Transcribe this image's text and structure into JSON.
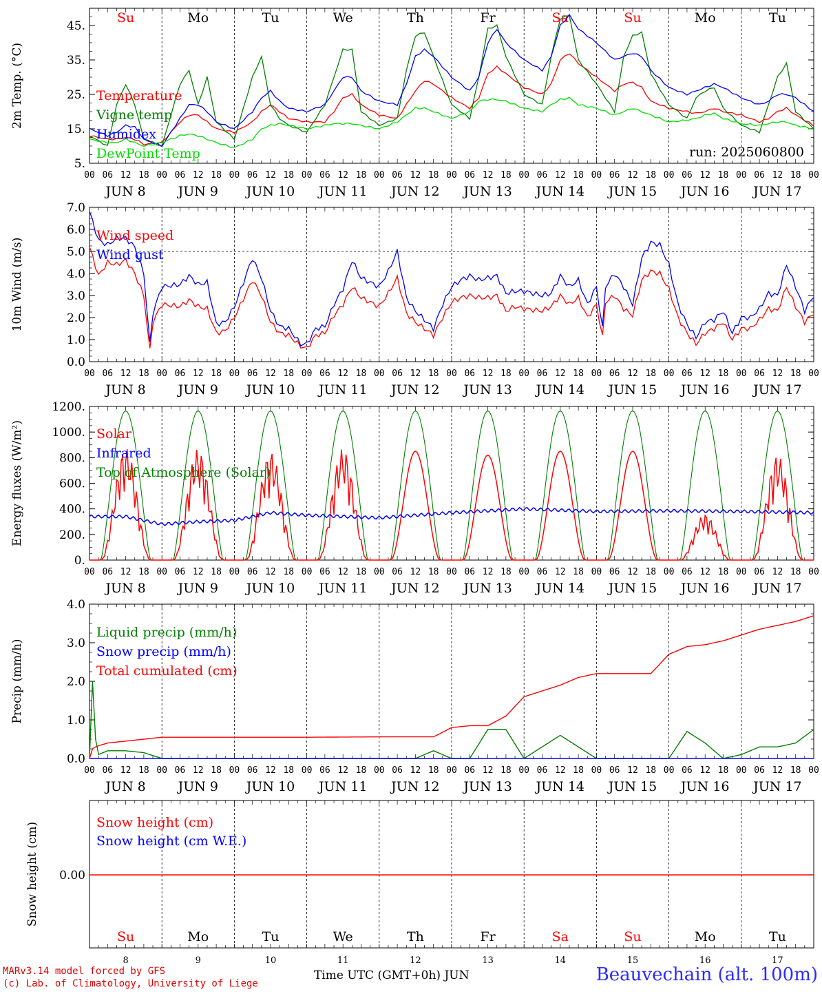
{
  "chart_data": [
    {
      "type": "line",
      "ylabel": "2m Temp. (°C)",
      "ylim": [
        5,
        50
      ],
      "yticks": [
        "5.",
        "15.",
        "25.",
        "35.",
        "45."
      ],
      "annotation": "run: 2025060800",
      "x_hours": [
        0,
        6,
        9,
        12,
        15,
        18,
        24,
        30,
        33,
        36,
        39,
        42,
        48,
        54,
        57,
        60,
        63,
        66,
        72,
        78,
        81,
        84,
        87,
        90,
        96,
        102,
        105,
        108,
        111,
        114,
        120,
        126,
        129,
        132,
        135,
        138,
        144,
        150,
        153,
        156,
        159,
        162,
        168,
        174,
        177,
        180,
        183,
        186,
        192,
        198,
        201,
        204,
        207,
        210,
        216,
        222,
        225,
        228,
        231,
        234,
        240
      ],
      "series": [
        {
          "name": "Temperature",
          "color": "#ff0000",
          "values": [
            13,
            12,
            12,
            12.5,
            12,
            10.5,
            11,
            17,
            19,
            19,
            17,
            15,
            14,
            17,
            20,
            22,
            20,
            18,
            17,
            17,
            20,
            24,
            25,
            22,
            19,
            18,
            22,
            26,
            29,
            28,
            24,
            21,
            24,
            31,
            33,
            31,
            27,
            25,
            28,
            35,
            37,
            34,
            30,
            26,
            28,
            28.5,
            27,
            23,
            21,
            20,
            19.5,
            20,
            21,
            20,
            19,
            17,
            18,
            20,
            21,
            19,
            16
          ]
        },
        {
          "name": "Vigne temp",
          "color": "#008000",
          "values": [
            13,
            10,
            22,
            28,
            22,
            12,
            10,
            28,
            32,
            22,
            30,
            17,
            12,
            30,
            36,
            22,
            18,
            16,
            14,
            22,
            30,
            38,
            38,
            20,
            16,
            18,
            32,
            42,
            43,
            36,
            22,
            18,
            30,
            44,
            45,
            36,
            25,
            22,
            36,
            47,
            48,
            35,
            28,
            20,
            36,
            42,
            43,
            31,
            22,
            18,
            24,
            26,
            27,
            21,
            16,
            14,
            22,
            30,
            34,
            20,
            15
          ]
        },
        {
          "name": "Humidex",
          "color": "#0000ff",
          "values": [
            15,
            13,
            14,
            16,
            15.5,
            12,
            10,
            18,
            22,
            22,
            20,
            17,
            15,
            20,
            24,
            26,
            23,
            21,
            20,
            22,
            26,
            30,
            30,
            26,
            23,
            22,
            28,
            36,
            38,
            36,
            30,
            26,
            30,
            40,
            44,
            40,
            35,
            32,
            36,
            45,
            48,
            44,
            40,
            35,
            36,
            37,
            36,
            32,
            27,
            25,
            26,
            27,
            28,
            27,
            24,
            22,
            23,
            25,
            25,
            24,
            20
          ]
        },
        {
          "name": "DewPoint Temp",
          "color": "#00dd00",
          "values": [
            12,
            11,
            11,
            12,
            11,
            10,
            11,
            13,
            13.5,
            13,
            12,
            11,
            9.5,
            12,
            15,
            16,
            16.5,
            16,
            15,
            16,
            16.5,
            16.5,
            16.5,
            16,
            15,
            17,
            19,
            21,
            21,
            20,
            18,
            20,
            23,
            23.5,
            23.5,
            23,
            21,
            20,
            22,
            23.5,
            24,
            22,
            21,
            19,
            20,
            21,
            20,
            19,
            17,
            17.5,
            18,
            19,
            19.5,
            18,
            16.5,
            16,
            16.5,
            17,
            17,
            16,
            15
          ]
        }
      ]
    },
    {
      "type": "line",
      "ylabel": "10m Wind (m/s)",
      "ylim": [
        0,
        7
      ],
      "yticks": [
        "0.0",
        "1.0",
        "2.0",
        "3.0",
        "4.0",
        "5.0",
        "6.0",
        "7.0"
      ],
      "dashed_line_at": 5,
      "x_hours": [
        0,
        3,
        6,
        9,
        12,
        15,
        18,
        20,
        21,
        24,
        30,
        33,
        36,
        39,
        42,
        45,
        48,
        54,
        57,
        60,
        63,
        66,
        70,
        72,
        75,
        78,
        81,
        84,
        87,
        90,
        96,
        99,
        102,
        105,
        108,
        111,
        114,
        117,
        120,
        123,
        126,
        129,
        132,
        135,
        138,
        141,
        144,
        150,
        153,
        156,
        159,
        162,
        165,
        168,
        170,
        171,
        174,
        177,
        180,
        183,
        186,
        189,
        192,
        195,
        198,
        201,
        204,
        207,
        210,
        213,
        216,
        219,
        222,
        225,
        228,
        231,
        234,
        237,
        240
      ],
      "series": [
        {
          "name": "Wind speed",
          "color": "#ff0000",
          "values": [
            5.2,
            3.9,
            4.5,
            4.4,
            4.6,
            4,
            3,
            0.5,
            1.8,
            2.6,
            2.5,
            2.8,
            2.5,
            2.4,
            1.3,
            1.4,
            2,
            3.7,
            3,
            1.8,
            1.3,
            1.2,
            0.7,
            0.6,
            1.2,
            1.3,
            2.1,
            2.6,
            3.4,
            2.9,
            2.5,
            3.1,
            3.8,
            2.2,
            1.8,
            1.5,
            1.2,
            2,
            2.7,
            2.9,
            3,
            2.9,
            2.9,
            3,
            2.3,
            2.5,
            2.4,
            2.3,
            2.5,
            3,
            2.6,
            2.9,
            2,
            2.6,
            1.1,
            2.7,
            3,
            2.4,
            2.1,
            3.7,
            4.1,
            4,
            3.3,
            2,
            1.3,
            0.8,
            1.3,
            1.5,
            1.8,
            1,
            1.5,
            1.5,
            1.9,
            2.4,
            2.3,
            3.4,
            2.5,
            1.8,
            2.2
          ]
        },
        {
          "name": "Wind gust",
          "color": "#0000ff",
          "values": [
            6.8,
            5.5,
            5.3,
            5.6,
            5.6,
            5.2,
            4,
            0.8,
            2.2,
            3.4,
            3.5,
            3.9,
            3.5,
            3.6,
            1.7,
            1.8,
            2.5,
            4.7,
            3.8,
            2.3,
            1.6,
            1.5,
            0.8,
            0.8,
            1.5,
            1.6,
            2.6,
            3.3,
            4.6,
            3.8,
            3.4,
            4.1,
            5,
            2.9,
            2.3,
            1.9,
            1.5,
            2.6,
            3.4,
            3.7,
            3.9,
            3.7,
            3.8,
            3.9,
            3.1,
            3.2,
            3.2,
            3,
            3.1,
            3.9,
            3.4,
            3.7,
            2.6,
            3.4,
            1.5,
            3.4,
            4,
            3.4,
            2.6,
            4.7,
            5.4,
            5.3,
            4.4,
            2.6,
            1.7,
            1.1,
            1.8,
            1.9,
            2.3,
            1.3,
            2,
            2,
            2.4,
            3.1,
            3,
            4.4,
            3.4,
            2.3,
            3
          ]
        }
      ]
    },
    {
      "type": "line",
      "ylabel": "Energy fluxes (W/m²)",
      "ylim": [
        0,
        1200
      ],
      "yticks": [
        "0.",
        "200.",
        "400.",
        "600.",
        "800.",
        "1000.",
        "1200."
      ],
      "solar_peaks": [
        880,
        870,
        850,
        870,
        850,
        820,
        850,
        850,
        360,
        820
      ],
      "toa_peak": 1165,
      "infrared_hourly_base": [
        340,
        330,
        310,
        370,
        345,
        330,
        380,
        395,
        390,
        380,
        390,
        370,
        360
      ],
      "series": [
        {
          "name": "Solar",
          "color": "#ff0000"
        },
        {
          "name": "Infrared",
          "color": "#0000ff"
        },
        {
          "name": "Top of Atmosphere (Solar)",
          "color": "#008000"
        }
      ]
    },
    {
      "type": "line",
      "ylabel": "Precip (mm/h)",
      "ylim": [
        0,
        4
      ],
      "yticks": [
        "0.0",
        "1.0",
        "2.0",
        "3.0",
        "4.0"
      ],
      "x_hours": [
        0,
        1,
        2,
        3,
        6,
        12,
        18,
        24,
        48,
        72,
        96,
        108,
        114,
        120,
        126,
        132,
        138,
        144,
        150,
        156,
        162,
        168,
        174,
        180,
        186,
        192,
        198,
        204,
        210,
        216,
        222,
        228,
        234,
        240
      ],
      "series": [
        {
          "name": "Liquid precip (mm/h)",
          "color": "#008000",
          "values": [
            0,
            2,
            0.5,
            0.1,
            0.2,
            0.2,
            0.15,
            0,
            0,
            0,
            0,
            0,
            0.2,
            0,
            0,
            0.75,
            0.75,
            0,
            0.3,
            0.6,
            0.3,
            0,
            0,
            0,
            0,
            0,
            0.7,
            0.4,
            0,
            0.1,
            0.3,
            0.3,
            0.4,
            0.75
          ]
        },
        {
          "name": "Snow precip (mm/h)",
          "color": "#0000ff",
          "values": [
            0,
            0,
            0,
            0,
            0,
            0,
            0,
            0,
            0,
            0,
            0,
            0,
            0,
            0,
            0,
            0,
            0,
            0,
            0,
            0,
            0,
            0,
            0,
            0,
            0,
            0,
            0,
            0,
            0,
            0,
            0,
            0,
            0,
            0
          ]
        },
        {
          "name": "Total cumulated (cm)",
          "color": "#ff0000",
          "values": [
            0,
            0.25,
            0.3,
            0.33,
            0.4,
            0.45,
            0.5,
            0.55,
            0.55,
            0.55,
            0.56,
            0.56,
            0.56,
            0.8,
            0.85,
            0.85,
            1.1,
            1.6,
            1.75,
            1.9,
            2.1,
            2.2,
            2.2,
            2.2,
            2.2,
            2.7,
            2.9,
            2.95,
            3.05,
            3.2,
            3.35,
            3.45,
            3.55,
            3.7
          ]
        }
      ]
    },
    {
      "type": "line",
      "ylabel": "Snow height (cm)",
      "yticks": [
        "0.00"
      ],
      "series": [
        {
          "name": "Snow height (cm)",
          "color": "#ff0000",
          "values": [
            0,
            0
          ]
        },
        {
          "name": "Snow height (cm W.E.)",
          "color": "#0000ff",
          "values": [
            0,
            0
          ]
        }
      ]
    }
  ],
  "hour_ticks": [
    "00",
    "06",
    "12",
    "18"
  ],
  "last_hour_tick": "00",
  "date_labels": [
    "JUN  8",
    "JUN  9",
    "JUN 10",
    "JUN 11",
    "JUN 12",
    "JUN 13",
    "JUN 14",
    "JUN 15",
    "JUN 16",
    "JUN 17"
  ],
  "weekdays": [
    {
      "label": "Su",
      "weekend": true
    },
    {
      "label": "Mo",
      "weekend": false
    },
    {
      "label": "Tu",
      "weekend": false
    },
    {
      "label": "We",
      "weekend": false
    },
    {
      "label": "Th",
      "weekend": false
    },
    {
      "label": "Fr",
      "weekend": false
    },
    {
      "label": "Sa",
      "weekend": true
    },
    {
      "label": "Su",
      "weekend": true
    },
    {
      "label": "Mo",
      "weekend": false
    },
    {
      "label": "Tu",
      "weekend": false
    }
  ],
  "bottom_day_numbers": [
    "8",
    "9",
    "10",
    "11",
    "12",
    "13",
    "14",
    "15",
    "16",
    "17"
  ],
  "footer": {
    "model": "MARv3.14 model forced by GFS",
    "credit": "(c) Lab. of Climatology, University of Liege",
    "axis_title": "Time UTC (GMT+0h) JUN",
    "location": "Beauvechain (alt. 100m)"
  }
}
